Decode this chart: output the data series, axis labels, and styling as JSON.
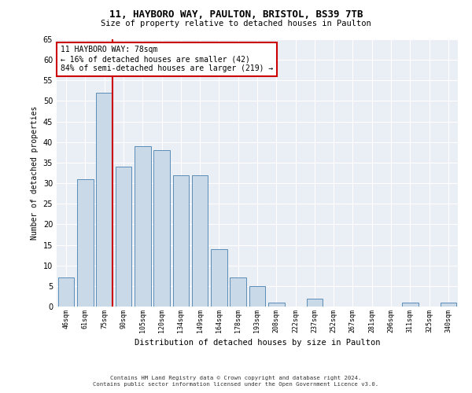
{
  "title_line1": "11, HAYBORO WAY, PAULTON, BRISTOL, BS39 7TB",
  "title_line2": "Size of property relative to detached houses in Paulton",
  "xlabel": "Distribution of detached houses by size in Paulton",
  "ylabel": "Number of detached properties",
  "categories": [
    "46sqm",
    "61sqm",
    "75sqm",
    "90sqm",
    "105sqm",
    "120sqm",
    "134sqm",
    "149sqm",
    "164sqm",
    "178sqm",
    "193sqm",
    "208sqm",
    "222sqm",
    "237sqm",
    "252sqm",
    "267sqm",
    "281sqm",
    "296sqm",
    "311sqm",
    "325sqm",
    "340sqm"
  ],
  "values": [
    7,
    31,
    52,
    34,
    39,
    38,
    32,
    32,
    14,
    7,
    5,
    1,
    0,
    2,
    0,
    0,
    0,
    0,
    1,
    0,
    1
  ],
  "bar_color": "#c9d9e8",
  "bar_edge_color": "#5b8db8",
  "vline_color": "#cc0000",
  "annotation_text": "11 HAYBORO WAY: 78sqm\n← 16% of detached houses are smaller (42)\n84% of semi-detached houses are larger (219) →",
  "annotation_box_color": "white",
  "annotation_box_edge_color": "#cc0000",
  "ylim": [
    0,
    65
  ],
  "yticks": [
    0,
    5,
    10,
    15,
    20,
    25,
    30,
    35,
    40,
    45,
    50,
    55,
    60,
    65
  ],
  "bg_color": "#eaeff5",
  "footer_line1": "Contains HM Land Registry data © Crown copyright and database right 2024.",
  "footer_line2": "Contains public sector information licensed under the Open Government Licence v3.0."
}
